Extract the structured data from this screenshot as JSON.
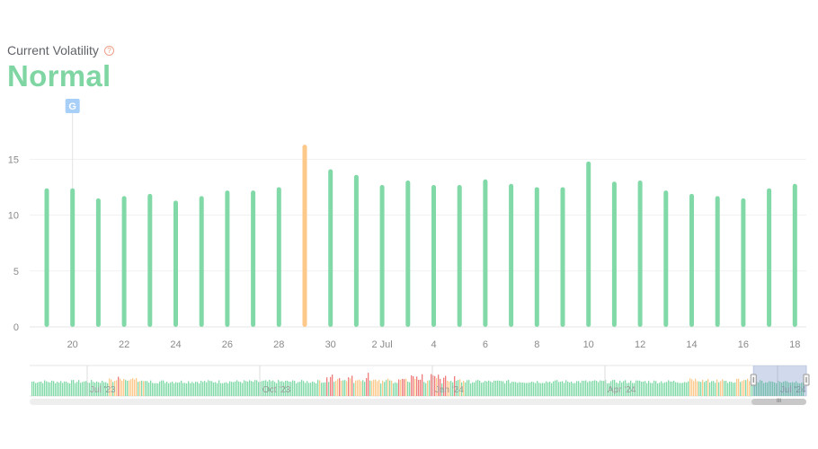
{
  "header": {
    "title": "Current Volatility",
    "status": "Normal",
    "status_color": "#7fd6a3",
    "help_icon": "question-circle-icon"
  },
  "marker": {
    "label": "G",
    "icon": "google-g-icon",
    "color": "#a8cff7"
  },
  "colors": {
    "normal": "#80d9a6",
    "high": "#fdc98b",
    "very_high": "#f07b7b"
  },
  "chart_data": {
    "type": "bar",
    "ylim": [
      0,
      18
    ],
    "yticks": [
      0,
      5,
      10,
      15
    ],
    "grid": true,
    "categories": [
      "19 Jun",
      "20 Jun",
      "21 Jun",
      "22 Jun",
      "23 Jun",
      "24 Jun",
      "25 Jun",
      "26 Jun",
      "27 Jun",
      "28 Jun",
      "29 Jun",
      "30 Jun",
      "1 Jul",
      "2 Jul",
      "3 Jul",
      "4 Jul",
      "5 Jul",
      "6 Jul",
      "7 Jul",
      "8 Jul",
      "9 Jul",
      "10 Jul",
      "11 Jul",
      "12 Jul",
      "13 Jul",
      "14 Jul",
      "15 Jul",
      "16 Jul",
      "17 Jul",
      "18 Jul"
    ],
    "values": [
      12.4,
      12.4,
      11.5,
      11.7,
      11.9,
      11.3,
      11.7,
      12.2,
      12.2,
      12.5,
      16.3,
      14.1,
      13.6,
      12.7,
      13.1,
      12.7,
      12.7,
      13.2,
      12.8,
      12.5,
      12.5,
      14.8,
      13.0,
      13.1,
      12.2,
      11.9,
      11.7,
      11.5,
      12.4,
      12.8
    ],
    "levels": [
      "normal",
      "normal",
      "normal",
      "normal",
      "normal",
      "normal",
      "normal",
      "normal",
      "normal",
      "normal",
      "high",
      "normal",
      "normal",
      "normal",
      "normal",
      "normal",
      "normal",
      "normal",
      "normal",
      "normal",
      "normal",
      "normal",
      "normal",
      "normal",
      "normal",
      "normal",
      "normal",
      "normal",
      "normal",
      "normal"
    ],
    "xtick_labels": [
      "20",
      "22",
      "24",
      "26",
      "28",
      "30",
      "2 Jul",
      "4",
      "6",
      "8",
      "10",
      "12",
      "14",
      "16",
      "18"
    ],
    "xtick_indices": [
      1,
      3,
      5,
      7,
      9,
      11,
      13,
      15,
      17,
      19,
      21,
      23,
      25,
      27,
      29
    ],
    "marker_index": 1
  },
  "navigator": {
    "labels": [
      "Jul '23",
      "Oct '23",
      "Jan '24",
      "Apr '24",
      "Jul '24"
    ],
    "selection_start": 0.932,
    "selection_end": 1.0
  },
  "scrollbar": {
    "grip": "III"
  }
}
